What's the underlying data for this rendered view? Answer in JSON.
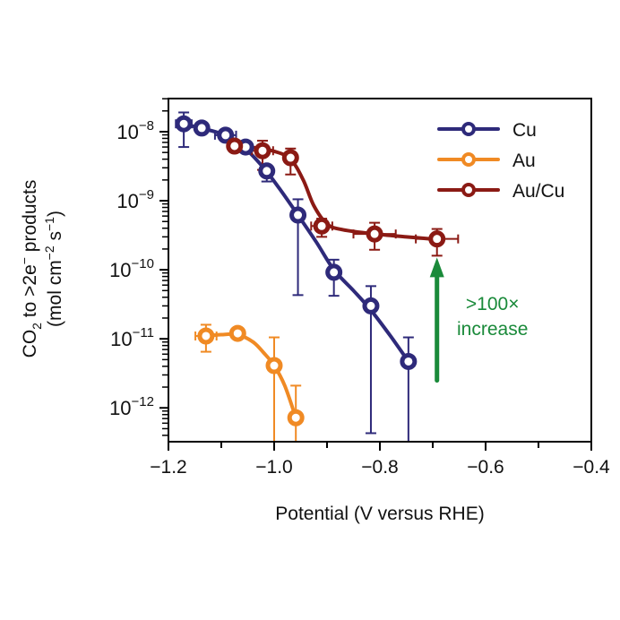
{
  "chart_data": {
    "type": "scatter",
    "title": "",
    "xlabel": "Potential (V versus RHE)",
    "ylabel_line1": "CO2 to >2e⁻ products",
    "ylabel_line2": "(mol cm⁻² s⁻¹)",
    "xlim": [
      -1.2,
      -0.4
    ],
    "ylim_log10": [
      -12.5,
      -7.5
    ],
    "yscale": "log",
    "grid": false,
    "legend_position": "top-right",
    "x_ticks": [
      {
        "value": -1.2,
        "label": "−1.2"
      },
      {
        "value": -1.0,
        "label": "−1.0"
      },
      {
        "value": -0.8,
        "label": "−0.8"
      },
      {
        "value": -0.6,
        "label": "−0.6"
      },
      {
        "value": -0.4,
        "label": "−0.4"
      }
    ],
    "y_ticks": [
      {
        "exp": -8,
        "base": "10",
        "sup": "−8"
      },
      {
        "exp": -9,
        "base": "10",
        "sup": "−9"
      },
      {
        "exp": -10,
        "base": "10",
        "sup": "−10"
      },
      {
        "exp": -11,
        "base": "10",
        "sup": "−11"
      },
      {
        "exp": -12,
        "base": "10",
        "sup": "−12"
      }
    ],
    "series": [
      {
        "name": "Cu",
        "color": "#2e2a7a",
        "points": [
          {
            "x": -1.171,
            "y": 1.3e-08,
            "ylo": 6e-09,
            "yhi": 1.9e-08,
            "xerr": 0.015
          },
          {
            "x": -1.137,
            "y": 1.13e-08,
            "ylo": 1e-08,
            "yhi": 1.25e-08,
            "xerr": 0.005
          },
          {
            "x": -1.092,
            "y": 8.9e-09,
            "ylo": 8e-09,
            "yhi": 9.8e-09,
            "xerr": 0.02
          },
          {
            "x": -1.054,
            "y": 6e-09,
            "ylo": 5.4e-09,
            "yhi": 6.5e-09,
            "xerr": 0.005
          },
          {
            "x": -1.014,
            "y": 2.7e-09,
            "ylo": 1.9e-09,
            "yhi": 3.2e-09,
            "xerr": 0.005
          },
          {
            "x": -0.955,
            "y": 6.2e-10,
            "ylo": 4.3e-11,
            "yhi": 1.05e-09,
            "xerr": 0.005
          },
          {
            "x": -0.887,
            "y": 9.2e-11,
            "ylo": 4.2e-11,
            "yhi": 1.4e-10,
            "xerr": 0.005
          },
          {
            "x": -0.817,
            "y": 3e-11,
            "ylo": 4.3e-13,
            "yhi": 5.8e-11,
            "xerr": 0.005
          },
          {
            "x": -0.746,
            "y": 4.7e-12,
            "ylo": 1e-13,
            "yhi": 1.05e-11,
            "xerr": 0.005
          }
        ],
        "curve": [
          [
            -1.171,
            1.3e-08
          ],
          [
            -1.14,
            1.13e-08
          ],
          [
            -1.1,
            9.3e-09
          ],
          [
            -1.06,
            6.2e-09
          ],
          [
            -1.02,
            3e-09
          ],
          [
            -0.99,
            1.5e-09
          ],
          [
            -0.955,
            6.2e-10
          ],
          [
            -0.92,
            2.5e-10
          ],
          [
            -0.887,
            1e-10
          ],
          [
            -0.85,
            5e-11
          ],
          [
            -0.817,
            2.6e-11
          ],
          [
            -0.78,
            1.1e-11
          ],
          [
            -0.746,
            4.7e-12
          ]
        ]
      },
      {
        "name": "Au",
        "color": "#f08a24",
        "points": [
          {
            "x": -1.129,
            "y": 1.1e-11,
            "ylo": 6.5e-12,
            "yhi": 1.6e-11,
            "xerr": 0.02
          },
          {
            "x": -1.069,
            "y": 1.2e-11,
            "ylo": 1.1e-11,
            "yhi": 1.3e-11,
            "xerr": 0.005
          },
          {
            "x": -1.0,
            "y": 4.1e-12,
            "ylo": 1e-13,
            "yhi": 1.05e-11,
            "xerr": 0.005
          },
          {
            "x": -0.959,
            "y": 7.2e-13,
            "ylo": 1e-13,
            "yhi": 2.1e-12,
            "xerr": 0.005
          }
        ],
        "curve": [
          [
            -1.129,
            1.1e-11
          ],
          [
            -1.1,
            1.15e-11
          ],
          [
            -1.069,
            1.15e-11
          ],
          [
            -1.04,
            9e-12
          ],
          [
            -1.02,
            6.3e-12
          ],
          [
            -1.0,
            4.1e-12
          ],
          [
            -0.98,
            2.1e-12
          ],
          [
            -0.959,
            7.2e-13
          ]
        ]
      },
      {
        "name": "Au/Cu",
        "color": "#8b1a14",
        "points": [
          {
            "x": -1.075,
            "y": 6.2e-09,
            "ylo": 5.6e-09,
            "yhi": 6.8e-09,
            "xerr": 0.005
          },
          {
            "x": -1.022,
            "y": 5.3e-09,
            "ylo": 2.8e-09,
            "yhi": 7.4e-09,
            "xerr": 0.02
          },
          {
            "x": -0.969,
            "y": 4.2e-09,
            "ylo": 2.4e-09,
            "yhi": 5.7e-09,
            "xerr": 0.005
          },
          {
            "x": -0.91,
            "y": 4.3e-10,
            "ylo": 3e-10,
            "yhi": 5.5e-10,
            "xerr": 0.02
          },
          {
            "x": -0.81,
            "y": 3.3e-10,
            "ylo": 1.95e-10,
            "yhi": 4.8e-10,
            "xerr": 0.04
          },
          {
            "x": -0.692,
            "y": 2.8e-10,
            "ylo": 1.6e-10,
            "yhi": 3.9e-10,
            "xerr": 0.04
          }
        ],
        "curve": [
          [
            -1.075,
            6.2e-09
          ],
          [
            -1.04,
            5.9e-09
          ],
          [
            -1.0,
            5.2e-09
          ],
          [
            -0.969,
            4e-09
          ],
          [
            -0.945,
            2e-09
          ],
          [
            -0.925,
            8.5e-10
          ],
          [
            -0.9,
            4.6e-10
          ],
          [
            -0.87,
            3.8e-10
          ],
          [
            -0.81,
            3.3e-10
          ],
          [
            -0.75,
            3e-10
          ],
          [
            -0.692,
            2.75e-10
          ]
        ]
      }
    ],
    "annotation": {
      "line1": ">100×",
      "line2": "increase",
      "color": "#1a8a3a",
      "arrow_x": -0.692,
      "arrow_from_y": 2.5e-12,
      "arrow_to_y": 1.6e-10
    }
  }
}
